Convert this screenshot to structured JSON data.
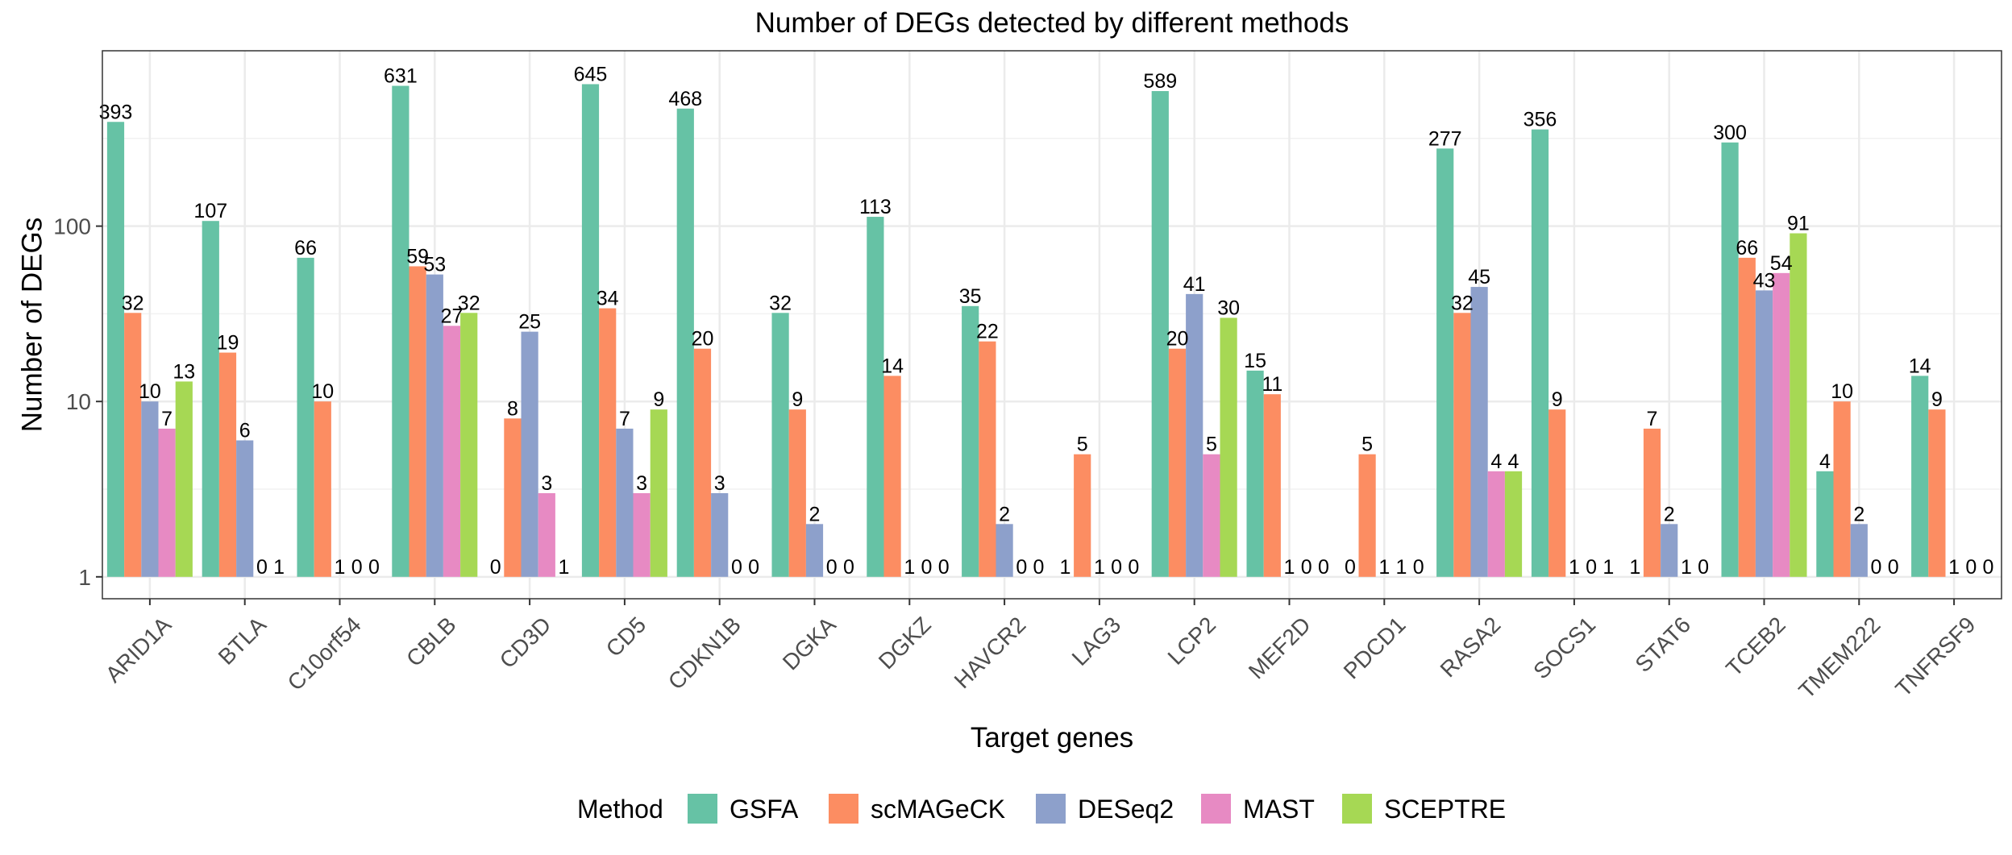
{
  "chart_data": {
    "type": "bar",
    "title": "Number of DEGs detected by different methods",
    "xlabel": "Target genes",
    "ylabel": "Number of DEGs",
    "yscale": "log10",
    "ylim": [
      0.75,
      1000
    ],
    "yticks": [
      1,
      10,
      100
    ],
    "ytick_labels": [
      "1",
      "10",
      "100"
    ],
    "grid": true,
    "legend_position": "bottom",
    "legend_title": "Method",
    "categories": [
      "ARID1A",
      "BTLA",
      "C10orf54",
      "CBLB",
      "CD3D",
      "CD5",
      "CDKN1B",
      "DGKA",
      "DGKZ",
      "HAVCR2",
      "LAG3",
      "LCP2",
      "MEF2D",
      "PDCD1",
      "RASA2",
      "SOCS1",
      "STAT6",
      "TCEB2",
      "TMEM222",
      "TNFRSF9"
    ],
    "series": [
      {
        "name": "GSFA",
        "color": "#66C2A5",
        "values": [
          393,
          107,
          66,
          631,
          0,
          645,
          468,
          32,
          113,
          35,
          1,
          589,
          15,
          0,
          277,
          356,
          1,
          300,
          4,
          14
        ]
      },
      {
        "name": "scMAGeCK",
        "color": "#FC8D62",
        "values": [
          32,
          19,
          10,
          59,
          8,
          34,
          20,
          9,
          14,
          22,
          5,
          20,
          11,
          5,
          32,
          9,
          7,
          66,
          10,
          9
        ]
      },
      {
        "name": "DESeq2",
        "color": "#8DA0CB",
        "values": [
          10,
          6,
          1,
          53,
          25,
          7,
          3,
          2,
          1,
          2,
          1,
          41,
          1,
          1,
          45,
          1,
          2,
          43,
          2,
          1
        ]
      },
      {
        "name": "MAST",
        "color": "#E78AC3",
        "values": [
          7,
          0,
          0,
          27,
          3,
          3,
          0,
          0,
          0,
          0,
          0,
          5,
          0,
          1,
          4,
          0,
          1,
          54,
          0,
          0
        ]
      },
      {
        "name": "SCEPTRE",
        "color": "#A6D854",
        "values": [
          13,
          1,
          0,
          32,
          1,
          9,
          0,
          0,
          0,
          0,
          0,
          30,
          0,
          0,
          4,
          1,
          0,
          91,
          0,
          0
        ]
      }
    ]
  }
}
